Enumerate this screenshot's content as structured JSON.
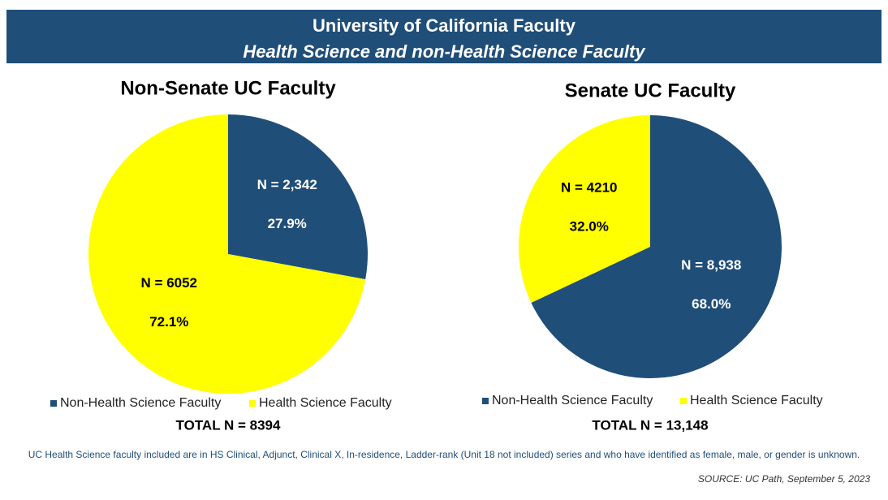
{
  "header": {
    "title": "University of California Faculty",
    "subtitle": "Health Science and non-Health Science Faculty"
  },
  "chart_data": [
    {
      "type": "pie",
      "title": "Non-Senate UC Faculty",
      "categories": [
        "Non-Health Science Faculty",
        "Health Science Faculty"
      ],
      "values": [
        27.9,
        72.1
      ],
      "value_labels": [
        "27.9%",
        "72.1%"
      ],
      "count_labels": [
        "N = 2,342",
        "N = 6052"
      ],
      "colors": [
        "#1f4e79",
        "#ffff00"
      ],
      "total_label": "TOTAL N = 8394"
    },
    {
      "type": "pie",
      "title": "Senate UC Faculty",
      "categories": [
        "Non-Health Science Faculty",
        "Health Science Faculty"
      ],
      "values": [
        68.0,
        32.0
      ],
      "value_labels": [
        "68.0%",
        "32.0%"
      ],
      "count_labels": [
        "N = 8,938",
        "N = 4210"
      ],
      "colors": [
        "#1f4e79",
        "#ffff00"
      ],
      "total_label": "TOTAL N = 13,148"
    }
  ],
  "footnote": "UC Health Science faculty included are in HS Clinical, Adjunct, Clinical X, In-residence, Ladder-rank (Unit 18 not included) series and who have identified as female, male, or gender is unknown.",
  "source": "SOURCE: UC Path, September 5, 2023"
}
